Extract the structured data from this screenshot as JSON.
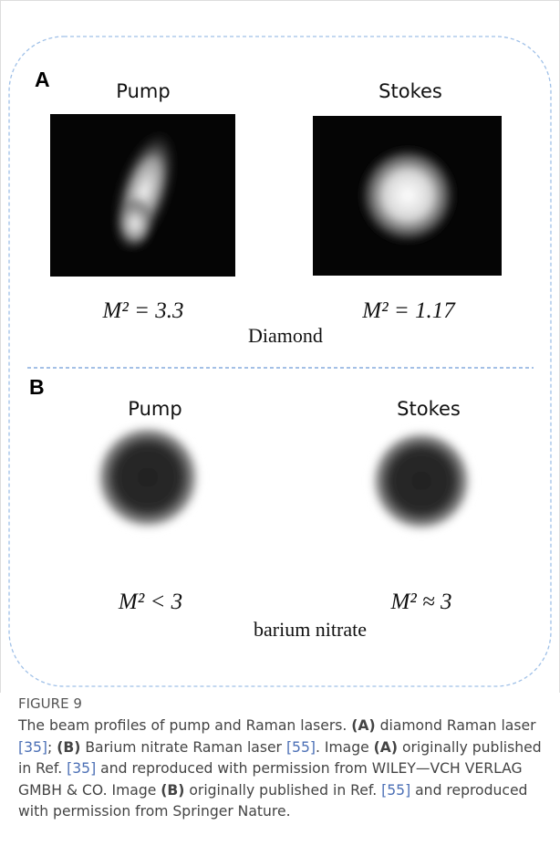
{
  "figure": {
    "panels": [
      {
        "label": "A",
        "left_title": "Pump",
        "right_title": "Stokes",
        "left_m2": "M² = 3.3",
        "right_m2": "M² = 1.17",
        "material": "Diamond"
      },
      {
        "label": "B",
        "left_title": "Pump",
        "right_title": "Stokes",
        "left_m2": "M² < 3",
        "right_m2": "M²  ≈ 3",
        "material": "barium nitrate"
      }
    ],
    "caption": {
      "label": "FIGURE 9",
      "segments": [
        "The beam profiles of pump and Raman lasers. ",
        "(A)",
        " diamond Raman laser ",
        "[35]",
        "; ",
        "(B)",
        " Barium nitrate Raman laser ",
        "[55]",
        ". Image ",
        "(A)",
        " originally published in Ref. ",
        "[35]",
        " and reproduced with permission from WILEY—VCH VERLAG GMBH & CO. Image ",
        "(B)",
        " originally published in Ref. ",
        "[55]",
        " and reproduced with permission from Springer Nature."
      ]
    }
  }
}
